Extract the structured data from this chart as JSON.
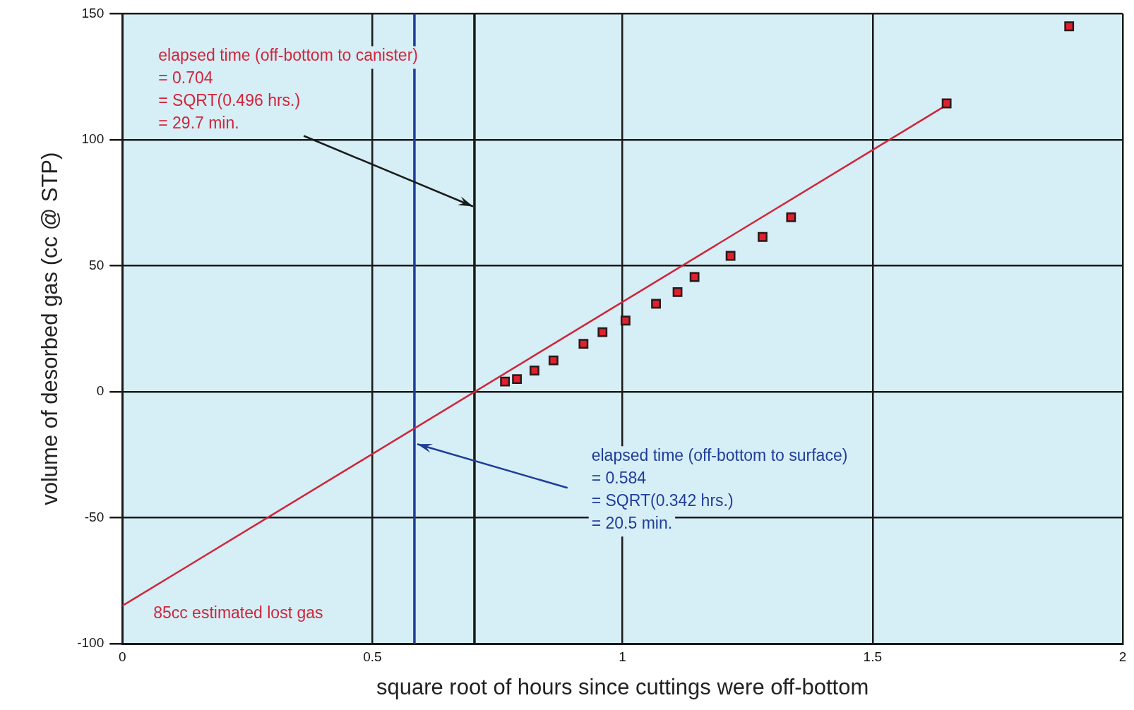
{
  "chart_data": {
    "type": "scatter",
    "xlabel": "square root of hours since cuttings were off-bottom",
    "ylabel": "volume of desorbed gas (cc @ STP)",
    "xlim": [
      0,
      2
    ],
    "xticks": [
      0,
      0.5,
      1,
      {
        "value": 1.5,
        "label": "1.5"
      },
      2
    ],
    "ylim": [
      -100,
      150
    ],
    "yticks": [
      -100,
      -50,
      0,
      50,
      100,
      150
    ],
    "series": [
      {
        "marker": "square",
        "color": "#e0202e",
        "x": [
          0.765,
          0.789,
          0.824,
          0.862,
          0.922,
          0.96,
          1.006,
          1.067,
          1.11,
          1.144,
          1.216,
          1.28,
          1.337,
          1.648,
          1.893
        ],
        "values": [
          4,
          5,
          8.4,
          12.4,
          19,
          23.6,
          28.2,
          34.9,
          39.5,
          45.5,
          53.9,
          61.4,
          69.2,
          114.4,
          145
        ]
      },
      {
        "type": "line",
        "color": "#d0253a",
        "x": [
          0,
          1.65
        ],
        "values": [
          -85,
          114
        ]
      }
    ],
    "ref_lines": [
      {
        "axis": "x",
        "value": 0.704,
        "color": "#1a1a1a"
      },
      {
        "axis": "x",
        "value": 0.584,
        "color": "#1f3d99"
      }
    ],
    "annotations": [
      "elapsed time (off-bottom to canister)\n= 0.704\n= SQRT(0.496 hrs.)\n= 29.7 min.",
      "elapsed time (off-bottom to surface)\n= 0.584\n= SQRT(0.342 hrs.)\n= 20.5 min.",
      "85cc estimated lost gas"
    ],
    "grid": true,
    "legend": false,
    "line_style": "solid"
  }
}
